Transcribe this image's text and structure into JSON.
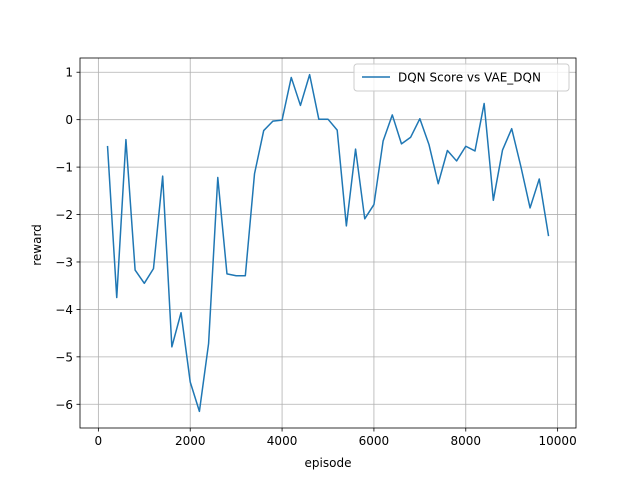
{
  "chart_data": {
    "type": "line",
    "title": "",
    "xlabel": "episode",
    "ylabel": "reward",
    "xlim": [
      -400,
      10400
    ],
    "ylim": [
      -6.5,
      1.3
    ],
    "xticks": [
      0,
      2000,
      4000,
      6000,
      8000,
      10000
    ],
    "yticks": [
      -6,
      -5,
      -4,
      -3,
      -2,
      -1,
      0,
      1
    ],
    "grid": true,
    "legend_position": "top-right",
    "colors": {
      "series": "#1f77b4",
      "grid": "#b0b0b0",
      "axes": "#000000"
    },
    "series": [
      {
        "name": "DQN Score vs VAE_DQN",
        "x": [
          200,
          400,
          600,
          800,
          1000,
          1200,
          1400,
          1600,
          1800,
          2000,
          2200,
          2400,
          2600,
          2800,
          3000,
          3200,
          3400,
          3600,
          3800,
          4000,
          4200,
          4400,
          4600,
          4800,
          5000,
          5200,
          5400,
          5600,
          5800,
          6000,
          6200,
          6400,
          6600,
          6800,
          7000,
          7200,
          7400,
          7600,
          7800,
          8000,
          8200,
          8400,
          8600,
          8800,
          9000,
          9200,
          9400,
          9600,
          9800
        ],
        "y": [
          -0.57,
          -3.75,
          -0.42,
          -3.17,
          -3.45,
          -3.14,
          -1.19,
          -4.79,
          -4.07,
          -5.53,
          -6.15,
          -4.72,
          -1.22,
          -3.25,
          -3.29,
          -3.29,
          -1.14,
          -0.23,
          -0.03,
          -0.01,
          0.89,
          0.3,
          0.95,
          0.01,
          0.01,
          -0.22,
          -2.24,
          -0.62,
          -2.09,
          -1.79,
          -0.45,
          0.1,
          -0.51,
          -0.37,
          0.02,
          -0.53,
          -1.35,
          -0.65,
          -0.87,
          -0.56,
          -0.66,
          0.34,
          -1.7,
          -0.64,
          -0.19,
          -0.99,
          -1.86,
          -1.25,
          -2.44
        ]
      }
    ]
  }
}
